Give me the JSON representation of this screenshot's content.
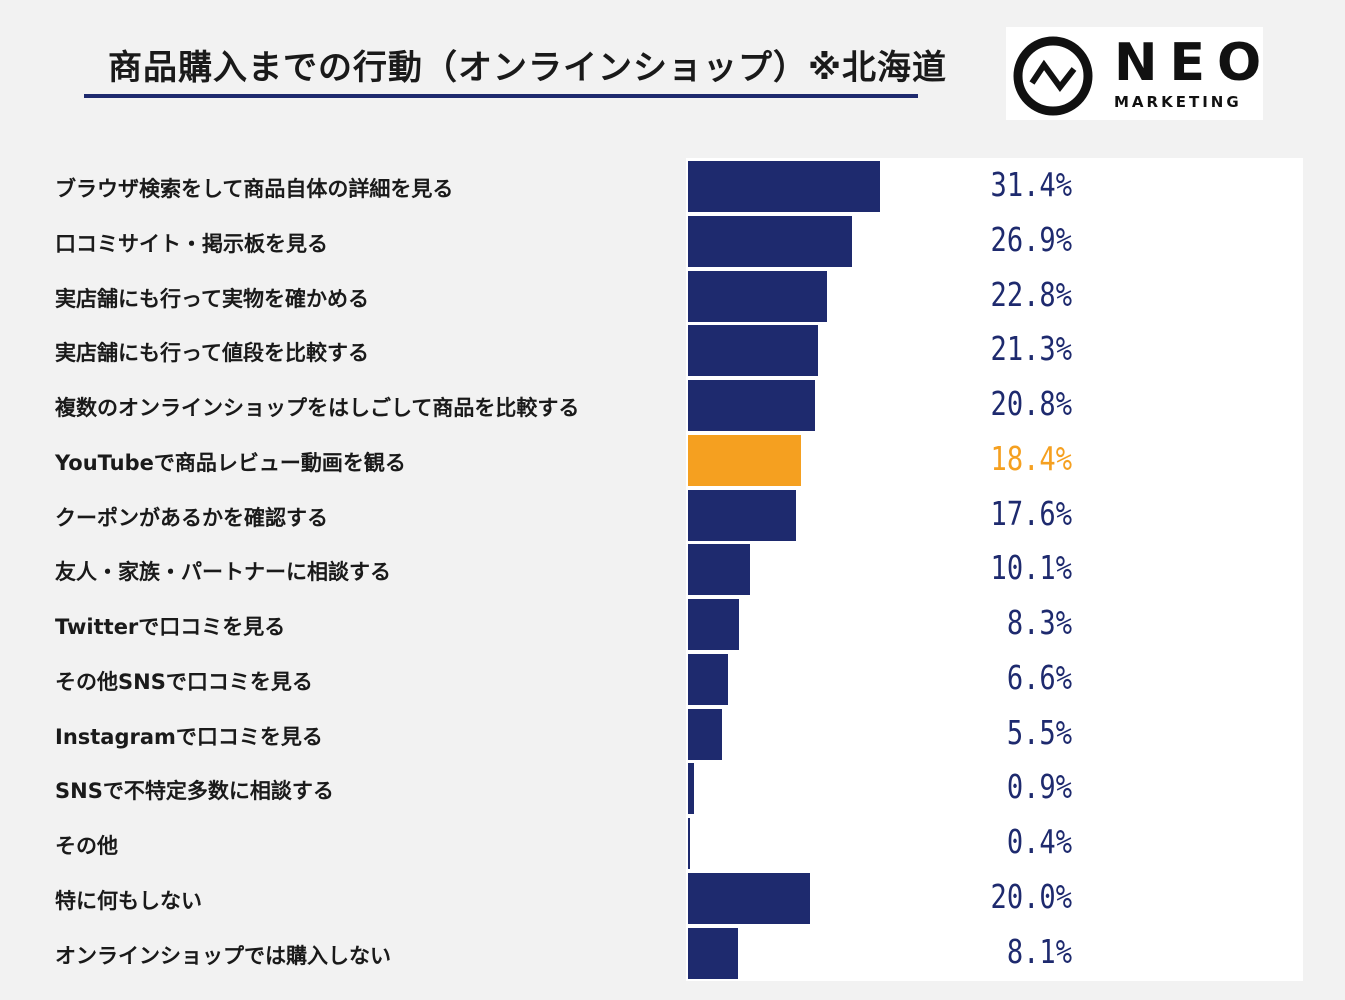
{
  "header": {
    "title": "商品購入までの行動（オンラインショップ）※北海道"
  },
  "logo": {
    "word": "NEO",
    "sub": "MARKETING"
  },
  "colors": {
    "bar": "#1e2a6e",
    "highlight": "#f5a020",
    "label_text": "#1e2a6e"
  },
  "chart_data": {
    "type": "bar",
    "orientation": "horizontal",
    "title": "商品購入までの行動（オンラインショップ）※北海道",
    "xlabel": "",
    "ylabel": "",
    "xlim": [
      0,
      100
    ],
    "categories": [
      "ブラウザ検索をして商品自体の詳細を見る",
      "口コミサイト・掲示板を見る",
      "実店舗にも行って実物を確かめる",
      "実店舗にも行って値段を比較する",
      "複数のオンラインショップをはしごして商品を比較する",
      "YouTubeで商品レビュー動画を観る",
      "クーポンがあるかを確認する",
      "友人・家族・パートナーに相談する",
      "Twitterで口コミを見る",
      "その他SNSで口コミを見る",
      "Instagramで口コミを見る",
      "SNSで不特定多数に相談する",
      "その他",
      "特に何もしない",
      "オンラインショップでは購入しない"
    ],
    "values": [
      31.4,
      26.9,
      22.8,
      21.3,
      20.8,
      18.4,
      17.6,
      10.1,
      8.3,
      6.6,
      5.5,
      0.9,
      0.4,
      20.0,
      8.1
    ],
    "value_labels": [
      "31.4%",
      "26.9%",
      "22.8%",
      "21.3%",
      "20.8%",
      "18.4%",
      "17.6%",
      "10.1%",
      "8.3%",
      "6.6%",
      "5.5%",
      "0.9%",
      "0.4%",
      "20.0%",
      "8.1%"
    ],
    "highlight_index": 5
  }
}
